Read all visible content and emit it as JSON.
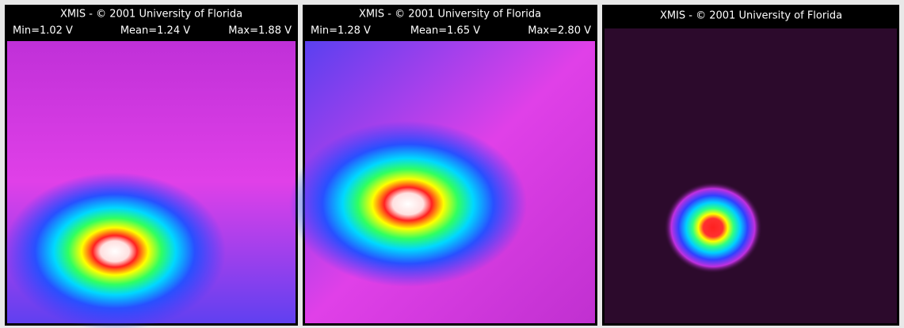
{
  "panels": [
    {
      "title": "XMIS - © 2001 University of Florida",
      "stats": [
        "Min=1.02 V",
        "Mean=1.24 V",
        "Max=1.88 V"
      ]
    },
    {
      "title": "XMIS - © 2001 University of Florida",
      "stats": [
        "Min=1.28 V",
        "Mean=1.65 V",
        "Max=2.80 V"
      ]
    },
    {
      "title": "XMIS - © 2001 University of Florida"
    }
  ]
}
